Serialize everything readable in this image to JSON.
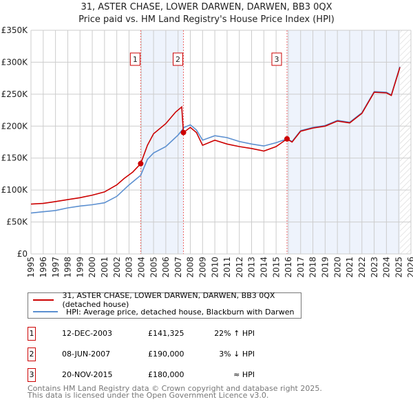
{
  "chart_data": {
    "type": "line",
    "title": "31, ASTER CHASE, LOWER DARWEN, DARWEN, BB3 0QX",
    "subtitle": "Price paid vs. HM Land Registry's House Price Index (HPI)",
    "xlim": [
      1995,
      2026
    ],
    "ylim": [
      0,
      350000
    ],
    "x_ticks": [
      "1995",
      "1996",
      "1997",
      "1998",
      "1999",
      "2000",
      "2001",
      "2002",
      "2003",
      "2004",
      "2005",
      "2006",
      "2007",
      "2008",
      "2009",
      "2010",
      "2011",
      "2012",
      "2013",
      "2014",
      "2015",
      "2016",
      "2017",
      "2018",
      "2019",
      "2020",
      "2021",
      "2022",
      "2023",
      "2024",
      "2025",
      "2026"
    ],
    "y_ticks": [
      {
        "v": 0,
        "label": "£0"
      },
      {
        "v": 50000,
        "label": "£50K"
      },
      {
        "v": 100000,
        "label": "£100K"
      },
      {
        "v": 150000,
        "label": "£150K"
      },
      {
        "v": 200000,
        "label": "£200K"
      },
      {
        "v": 250000,
        "label": "£250K"
      },
      {
        "v": 300000,
        "label": "£300K"
      },
      {
        "v": 350000,
        "label": "£350K"
      }
    ],
    "grid": true,
    "shaded_ranges": [
      [
        2003.95,
        2007.44
      ],
      [
        2015.89,
        2025.1
      ]
    ],
    "forecast_hatch_from": 2025.1,
    "series": [
      {
        "name": "31, ASTER CHASE, LOWER DARWEN, DARWEN, BB3 0QX (detached house)",
        "color": "#cc0000",
        "x": [
          1995,
          1996,
          1997,
          1998,
          1999,
          2000,
          2001,
          2002,
          2002.6,
          2003.3,
          2003.95,
          2004.5,
          2005,
          2006,
          2006.8,
          2007.3,
          2007.44,
          2008,
          2008.5,
          2009,
          2010,
          2011,
          2012,
          2013,
          2014,
          2015,
          2015.89,
          2016.3,
          2017,
          2018,
          2019,
          2020,
          2021,
          2022,
          2023,
          2024,
          2024.4,
          2025.1
        ],
        "y": [
          78000,
          79000,
          82000,
          85000,
          88000,
          92000,
          97000,
          108000,
          118000,
          128000,
          141325,
          170000,
          188000,
          204000,
          222000,
          230000,
          190000,
          198000,
          190000,
          170000,
          178000,
          172000,
          168000,
          165000,
          161000,
          168000,
          180000,
          175000,
          192000,
          197000,
          200000,
          208000,
          205000,
          220000,
          253000,
          252000,
          248000,
          292000
        ]
      },
      {
        "name": "HPI: Average price, detached house, Blackburn with Darwen",
        "color": "#5b8fd0",
        "x": [
          1995,
          1996,
          1997,
          1998,
          1999,
          2000,
          2001,
          2002,
          2003,
          2003.95,
          2004.5,
          2005,
          2006,
          2007,
          2007.5,
          2008,
          2008.5,
          2009,
          2010,
          2011,
          2012,
          2013,
          2014,
          2015,
          2015.89,
          2016.3,
          2017,
          2018,
          2019,
          2020,
          2021,
          2022,
          2023,
          2024,
          2024.4,
          2025.1
        ],
        "y": [
          64000,
          66000,
          68000,
          72000,
          75000,
          77000,
          80000,
          90000,
          108000,
          123000,
          148000,
          158000,
          168000,
          186000,
          198000,
          202000,
          194000,
          178000,
          185000,
          182000,
          176000,
          172000,
          169000,
          174000,
          180000,
          176000,
          193000,
          198000,
          201000,
          209000,
          206000,
          221000,
          254000,
          253000,
          249000,
          293000
        ]
      }
    ],
    "sales": [
      {
        "id": "1",
        "x": 2003.95,
        "y": 141325,
        "date": "12-DEC-2003",
        "price": "£141,325",
        "hpi": "22% ↑ HPI"
      },
      {
        "id": "2",
        "x": 2007.44,
        "y": 190000,
        "date": "08-JUN-2007",
        "price": "£190,000",
        "hpi": "3% ↓ HPI"
      },
      {
        "id": "3",
        "x": 2015.89,
        "y": 180000,
        "date": "20-NOV-2015",
        "price": "£180,000",
        "hpi": "≈ HPI"
      }
    ]
  },
  "footer": {
    "line1": "Contains HM Land Registry data © Crown copyright and database right 2025.",
    "line2": "This data is licensed under the Open Government Licence v3.0."
  }
}
